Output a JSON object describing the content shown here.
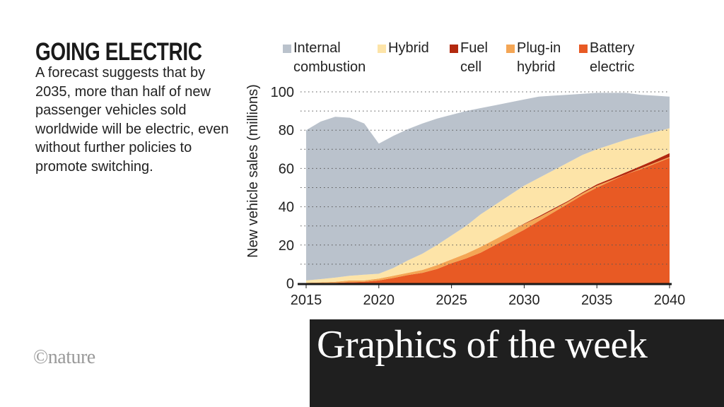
{
  "title": "GOING ELECTRIC",
  "description": "A forecast suggests that by 2035, more than half of new passenger vehicles sold worldwide will be electric, even without further policies to promote switching.",
  "logo": "©nature",
  "banner": "Graphics of the week",
  "chart_data": {
    "type": "area",
    "stacked": true,
    "ylabel": "New vehicle sales (millions)",
    "xlabel": "",
    "ylim": [
      0,
      100
    ],
    "yticks": [
      0,
      20,
      40,
      60,
      80,
      100
    ],
    "xticks": [
      2015,
      2020,
      2025,
      2030,
      2035,
      2040
    ],
    "grid": "horizontal dotted every 10",
    "legend_position": "top",
    "x": [
      2015,
      2016,
      2017,
      2018,
      2019,
      2020,
      2021,
      2022,
      2023,
      2024,
      2025,
      2026,
      2027,
      2028,
      2029,
      2030,
      2031,
      2032,
      2033,
      2034,
      2035,
      2036,
      2037,
      2038,
      2039,
      2040
    ],
    "series": [
      {
        "name": "Battery electric",
        "legend": [
          "Battery",
          "electric"
        ],
        "color": "#e85a24",
        "values": [
          0.1,
          0.2,
          0.3,
          0.6,
          0.8,
          1.5,
          2.8,
          4.3,
          5.5,
          7.5,
          10.5,
          13,
          16,
          20,
          24,
          28,
          32.5,
          37,
          41.5,
          46,
          50,
          53.5,
          57,
          59.5,
          62.5,
          65.5
        ]
      },
      {
        "name": "Plug-in hybrid",
        "legend": [
          "Plug-in",
          "hybrid"
        ],
        "color": "#f4a655",
        "values": [
          0.2,
          0.3,
          0.5,
          0.9,
          0.7,
          1,
          1.2,
          1.2,
          1.5,
          2,
          2,
          2.5,
          3,
          3,
          3,
          3,
          2,
          1.5,
          1,
          1,
          1,
          0.5,
          0,
          0.5,
          0.5,
          0.5
        ]
      },
      {
        "name": "Fuel cell",
        "legend": [
          "Fuel",
          "cell"
        ],
        "color": "#b3290f",
        "values": [
          0,
          0,
          0,
          0,
          0,
          0,
          0,
          0,
          0,
          0,
          0,
          0,
          0,
          0,
          0,
          0.2,
          0.5,
          0.5,
          0.5,
          0.5,
          0.7,
          0.8,
          1,
          1.2,
          1.5,
          2
        ]
      },
      {
        "name": "Hybrid",
        "legend": [
          "Hybrid",
          ""
        ],
        "color": "#fde4a8",
        "values": [
          1.2,
          1.7,
          2.2,
          2.5,
          3,
          2.5,
          4,
          6.5,
          8.5,
          10.5,
          12.5,
          14.5,
          17,
          18,
          19,
          19.8,
          20,
          20,
          20,
          19.5,
          18.3,
          17.7,
          17,
          15.8,
          14.5,
          13
        ]
      },
      {
        "name": "Internal combustion",
        "legend": [
          "Internal",
          "combustion"
        ],
        "color": "#bac2cc",
        "values": [
          78.5,
          82.3,
          84,
          82.5,
          79,
          68,
          69,
          68.5,
          68,
          66,
          63,
          60,
          55.5,
          52,
          48.5,
          45,
          42.5,
          39,
          35.5,
          32,
          29.5,
          27,
          24.5,
          21.5,
          19,
          16.5
        ]
      }
    ]
  }
}
